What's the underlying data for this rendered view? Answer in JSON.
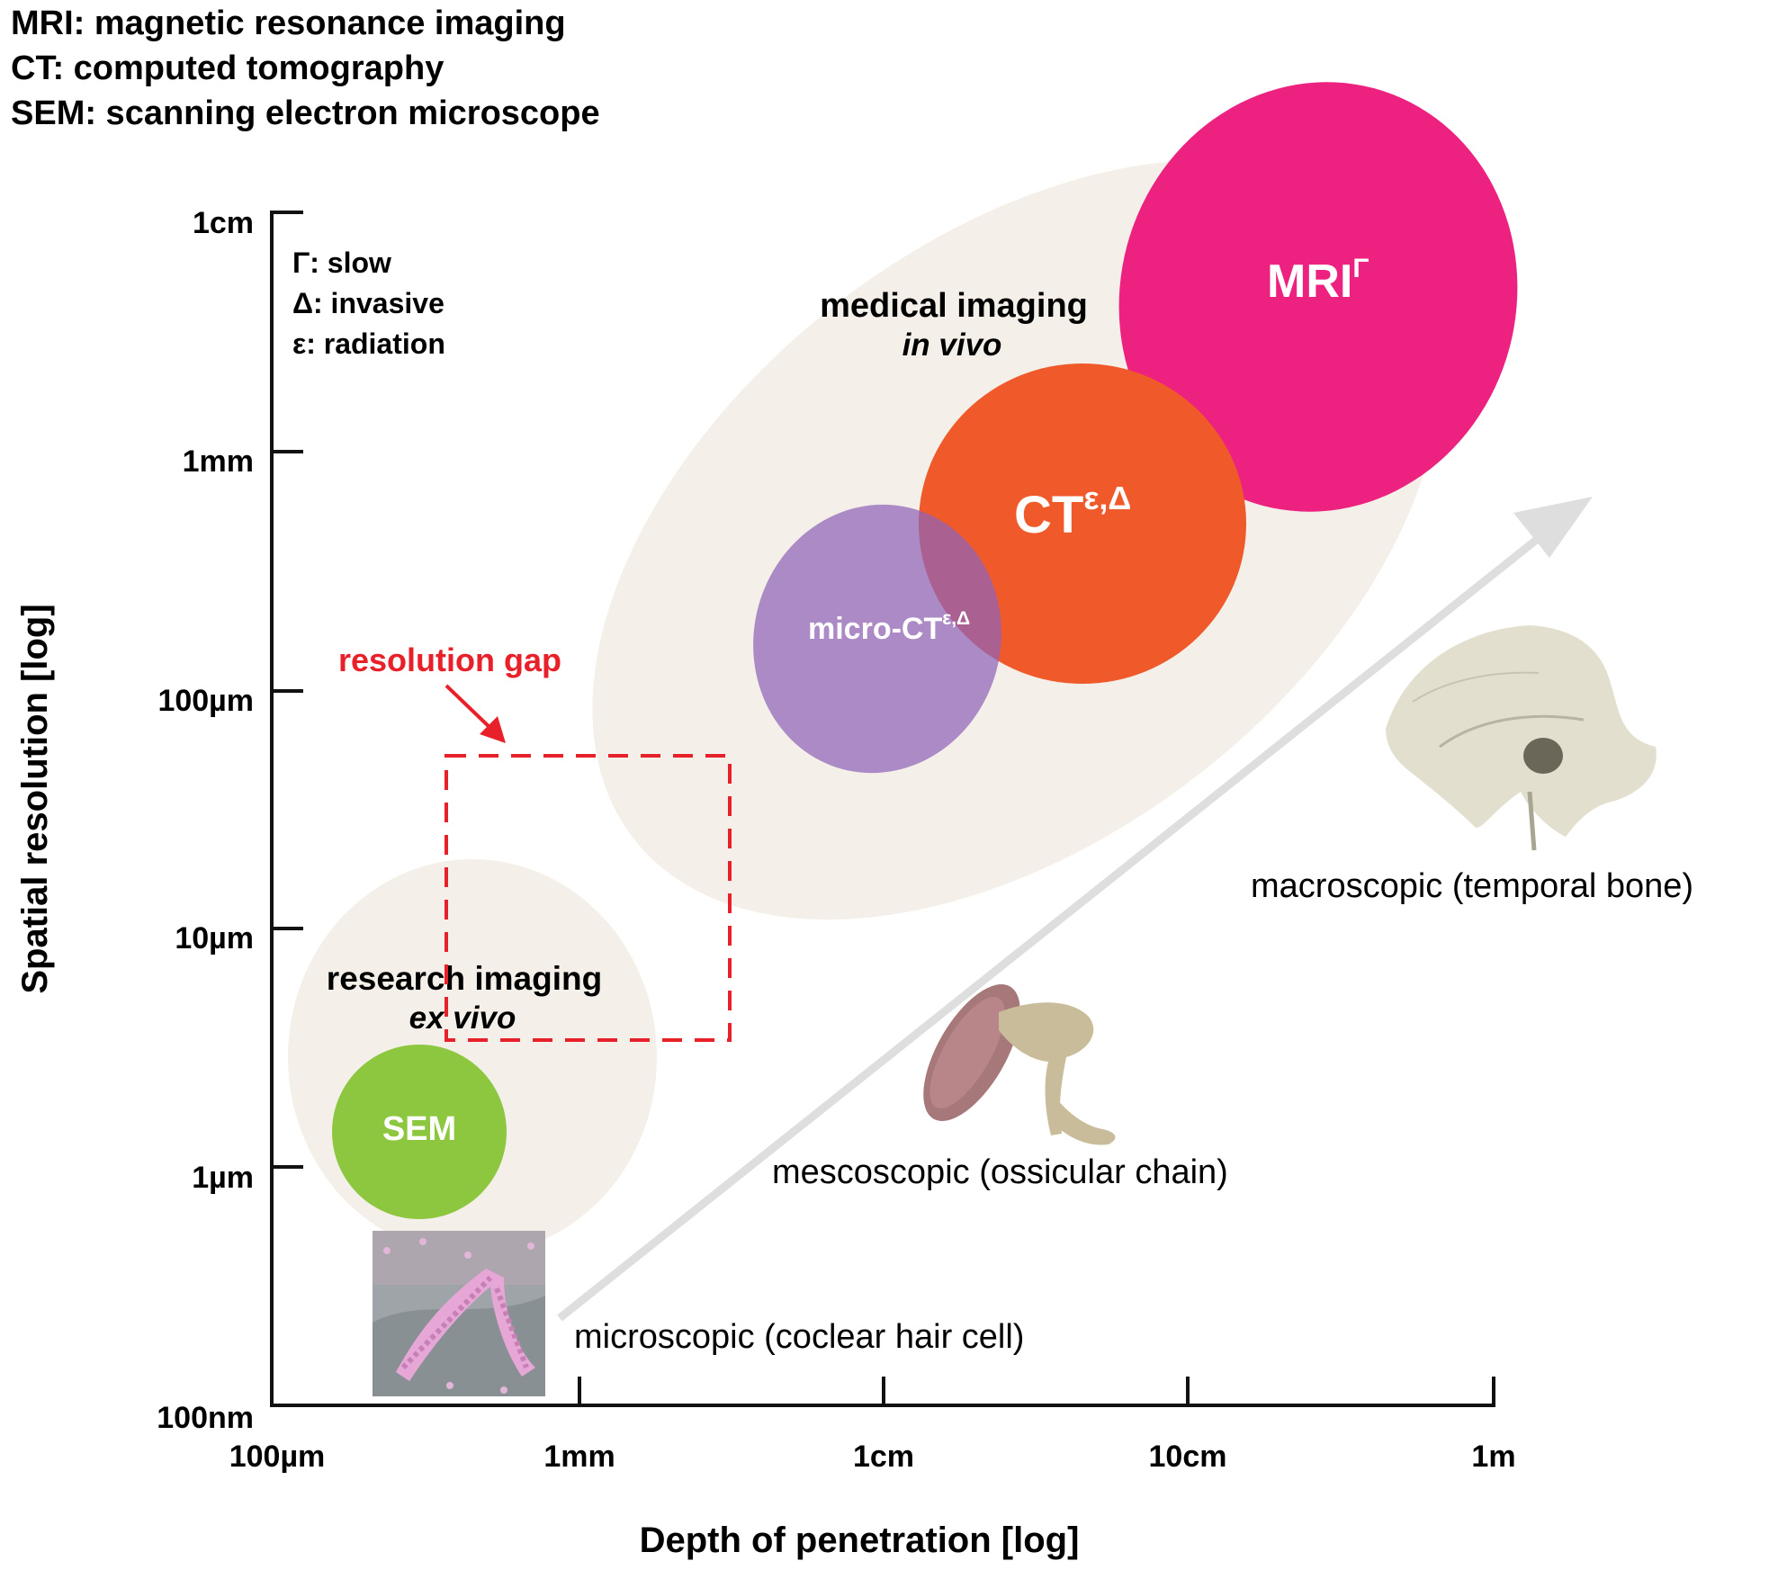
{
  "legend_top": [
    "MRI: magnetic resonance imaging",
    "CT: computed tomography",
    "SEM: scanning electron microscope"
  ],
  "legend_inner": [
    "Γ: slow",
    "Δ: invasive",
    "ε: radiation"
  ],
  "axes": {
    "y_label": "Spatial resolution [log]",
    "x_label": "Depth of penetration [log]",
    "y_ticks": [
      "1cm",
      "1mm",
      "100µm",
      "10µm",
      "1µm",
      "100nm"
    ],
    "x_ticks": [
      "100µm",
      "1mm",
      "1cm",
      "10cm",
      "1m"
    ],
    "y_scale": "log",
    "x_scale": "log"
  },
  "regions": {
    "medical": {
      "title": "medical imaging",
      "subtitle": "in vivo"
    },
    "research": {
      "title": "research imaging",
      "subtitle": "ex vivo"
    }
  },
  "modalities": {
    "mri": {
      "label": "MRI",
      "sup": "Γ",
      "color": "#ec2180"
    },
    "ct": {
      "label": "CT",
      "sup": "ε,Δ",
      "color": "#f05a2a"
    },
    "microct": {
      "label": "micro-CT",
      "sup": "ε,Δ",
      "color": "#9c7bb8"
    },
    "sem": {
      "label": "SEM",
      "color": "#8dc63f"
    }
  },
  "gap": {
    "label": "resolution gap",
    "color": "#e8202a"
  },
  "scales": {
    "micro": "microscopic (coclear hair cell)",
    "meso": "mescoscopic (ossicular chain)",
    "macro": "macroscopic (temporal bone)"
  },
  "colors": {
    "region_fill": "#f4efe8",
    "axis": "#111111",
    "arrow": "#dedede"
  }
}
